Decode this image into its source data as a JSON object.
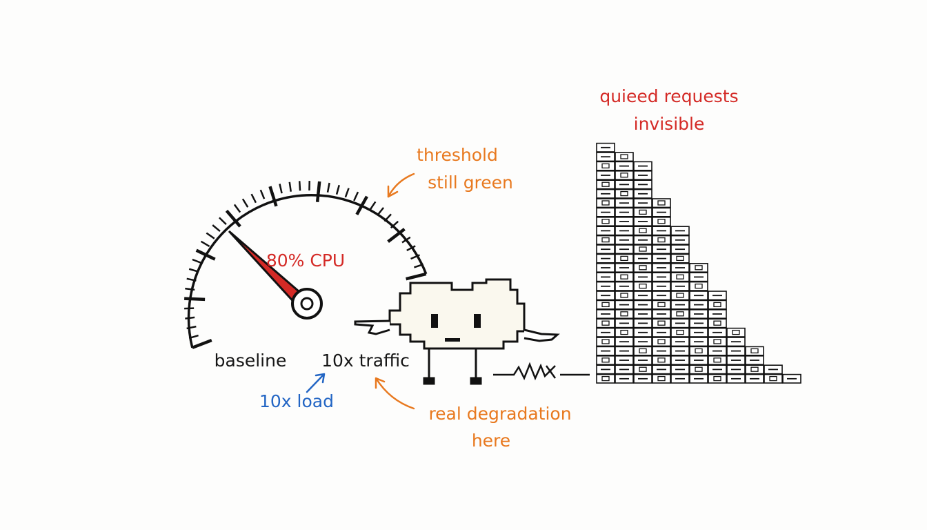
{
  "labels": {
    "queued": [
      "quieed requests",
      "invisible"
    ],
    "threshold": [
      "threshold",
      "still green"
    ],
    "cpu": "80% CPU",
    "baseline": "baseline",
    "traffic": "10x traffic",
    "load": "10x load",
    "degradation": [
      "real degradation",
      "here"
    ]
  }
}
